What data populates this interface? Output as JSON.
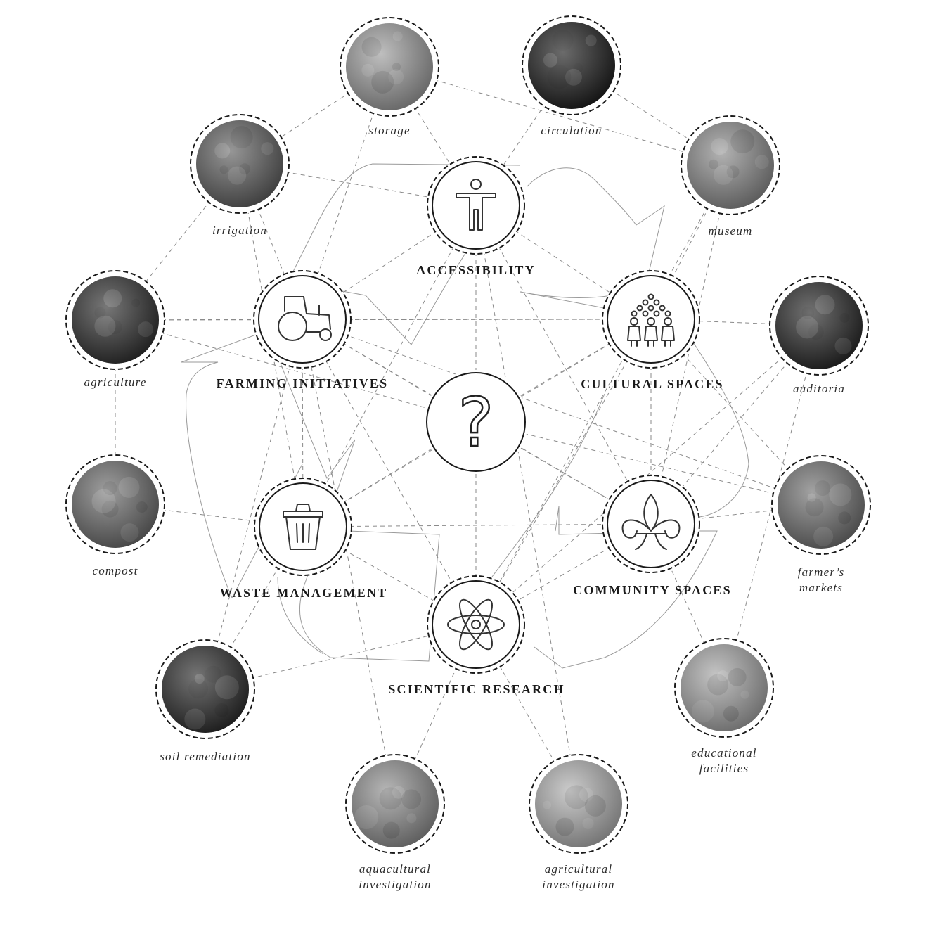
{
  "center": {
    "symbol": "?"
  },
  "hubs": [
    {
      "id": "accessibility",
      "label": "ACCESSIBILITY",
      "icon": "person-icon"
    },
    {
      "id": "farming",
      "label": "FARMING INITIATIVES",
      "icon": "tractor-icon"
    },
    {
      "id": "cultural",
      "label": "CULTURAL SPACES",
      "icon": "people-group-icon"
    },
    {
      "id": "waste",
      "label": "WASTE MANAGEMENT",
      "icon": "trash-can-icon"
    },
    {
      "id": "community",
      "label": "COMMUNITY SPACES",
      "icon": "fleur-de-lis-icon"
    },
    {
      "id": "research",
      "label": "SCIENTIFIC RESEARCH",
      "icon": "atom-icon"
    }
  ],
  "satellites": [
    {
      "id": "storage",
      "label": [
        "storage"
      ],
      "tone": "#9c9c9c"
    },
    {
      "id": "circulation",
      "label": [
        "circulation"
      ],
      "tone": "#1c1c1c"
    },
    {
      "id": "irrigation",
      "label": [
        "irrigation"
      ],
      "tone": "#5e5e5e"
    },
    {
      "id": "museum",
      "label": [
        "museum"
      ],
      "tone": "#8a8a8a"
    },
    {
      "id": "agriculture",
      "label": [
        "agriculture"
      ],
      "tone": "#2e2e2e"
    },
    {
      "id": "auditoria",
      "label": [
        "auditoria"
      ],
      "tone": "#262626"
    },
    {
      "id": "compost",
      "label": [
        "compost"
      ],
      "tone": "#6a6a6a"
    },
    {
      "id": "farmers",
      "label": [
        "farmer’s",
        "markets"
      ],
      "tone": "#707070"
    },
    {
      "id": "soil",
      "label": [
        "soil remediation"
      ],
      "tone": "#2a2a2a"
    },
    {
      "id": "educational",
      "label": [
        "educational",
        "facilities"
      ],
      "tone": "#a4a4a4"
    },
    {
      "id": "aquacultural",
      "label": [
        "aquacultural",
        "investigation"
      ],
      "tone": "#8e8e8e"
    },
    {
      "id": "agricultural",
      "label": [
        "agricultural",
        "investigation"
      ],
      "tone": "#b0b0b0"
    }
  ]
}
